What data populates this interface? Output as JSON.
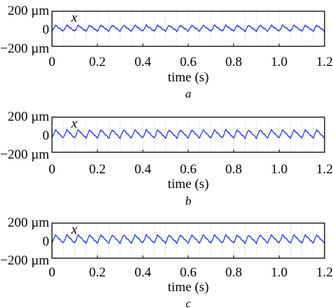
{
  "chart_data": [
    {
      "type": "line",
      "panel_label": "a",
      "xlabel": "time (s)",
      "y_tick_labels": [
        "200 µm",
        "0",
        "−200 µm"
      ],
      "x_tick_labels": [
        "0",
        "0.2",
        "0.4",
        "0.6",
        "0.8",
        "1.0",
        "1.2"
      ],
      "xlim": [
        0,
        1.2
      ],
      "ylim": [
        -200,
        200
      ],
      "grid": "vertical dotted",
      "series": [
        {
          "name": "x",
          "color": "#2b3fd1",
          "period_s": 0.05,
          "amplitude_um": 40,
          "offset_um": 0
        }
      ]
    },
    {
      "type": "line",
      "panel_label": "b",
      "xlabel": "time (s)",
      "y_tick_labels": [
        "200 µm",
        "0",
        "−200 µm"
      ],
      "x_tick_labels": [
        "0",
        "0.2",
        "0.4",
        "0.6",
        "0.8",
        "1.0",
        "1.2"
      ],
      "xlim": [
        0,
        1.2
      ],
      "ylim": [
        -200,
        200
      ],
      "grid": "vertical dotted",
      "series": [
        {
          "name": "x",
          "color": "#2b3fd1",
          "period_s": 0.05,
          "amplitude_um": 55,
          "offset_um": 0
        }
      ]
    },
    {
      "type": "line",
      "panel_label": "c",
      "xlabel": "time (s)",
      "y_tick_labels": [
        "200 µm",
        "0",
        "−200 µm"
      ],
      "x_tick_labels": [
        "0",
        "0.2",
        "0.4",
        "0.6",
        "0.8",
        "1.0",
        "1.2"
      ],
      "xlim": [
        0,
        1.2
      ],
      "ylim": [
        -200,
        200
      ],
      "grid": "vertical dotted",
      "series": [
        {
          "name": "x",
          "color": "#2b3fd1",
          "period_s": 0.05,
          "amplitude_um": 55,
          "offset_um": 10
        }
      ]
    }
  ]
}
